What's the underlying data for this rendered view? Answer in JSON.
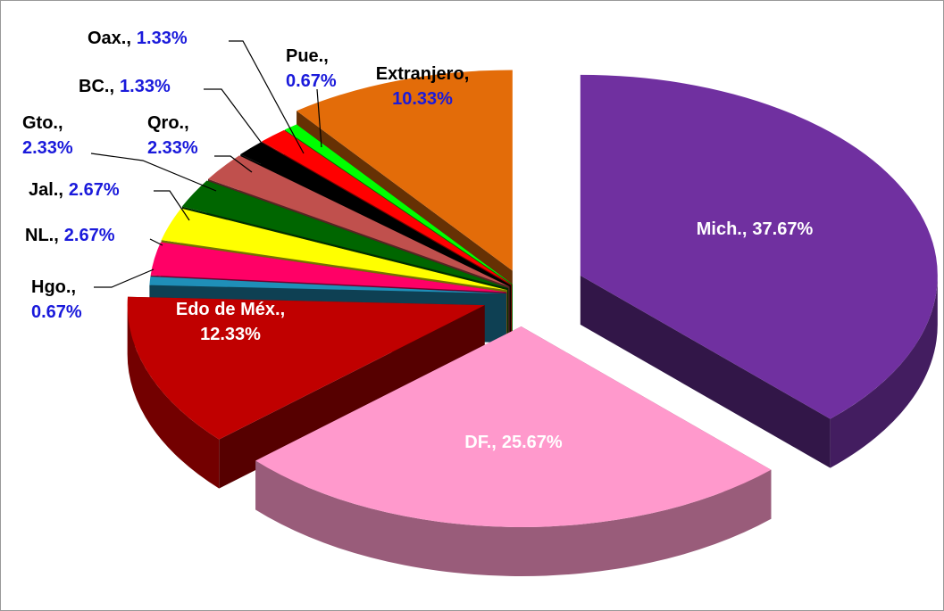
{
  "chart_data": {
    "type": "pie",
    "categories": [
      "Mich.",
      "DF.",
      "Edo de Méx.",
      "Hgo.",
      "NL.",
      "Jal.",
      "Gto.",
      "Qro.",
      "BC.",
      "Oax.",
      "Pue.",
      "Extranjero"
    ],
    "separator": ",",
    "values": [
      37.67,
      25.67,
      12.33,
      0.67,
      2.67,
      2.67,
      2.33,
      2.33,
      1.33,
      1.33,
      0.67,
      10.33
    ],
    "value_labels": [
      "37.67%",
      "25.67%",
      "12.33%",
      "0.67%",
      "2.67%",
      "2.67%",
      "2.33%",
      "2.33%",
      "1.33%",
      "1.33%",
      "0.67%",
      "10.33%"
    ],
    "colors": [
      "#7030a0",
      "#ff99cc",
      "#c00000",
      "#1f8fb8",
      "#ff0066",
      "#ffff00",
      "#006600",
      "#c0504d",
      "#000000",
      "#ff0000",
      "#00ff00",
      "#e36c09"
    ]
  }
}
